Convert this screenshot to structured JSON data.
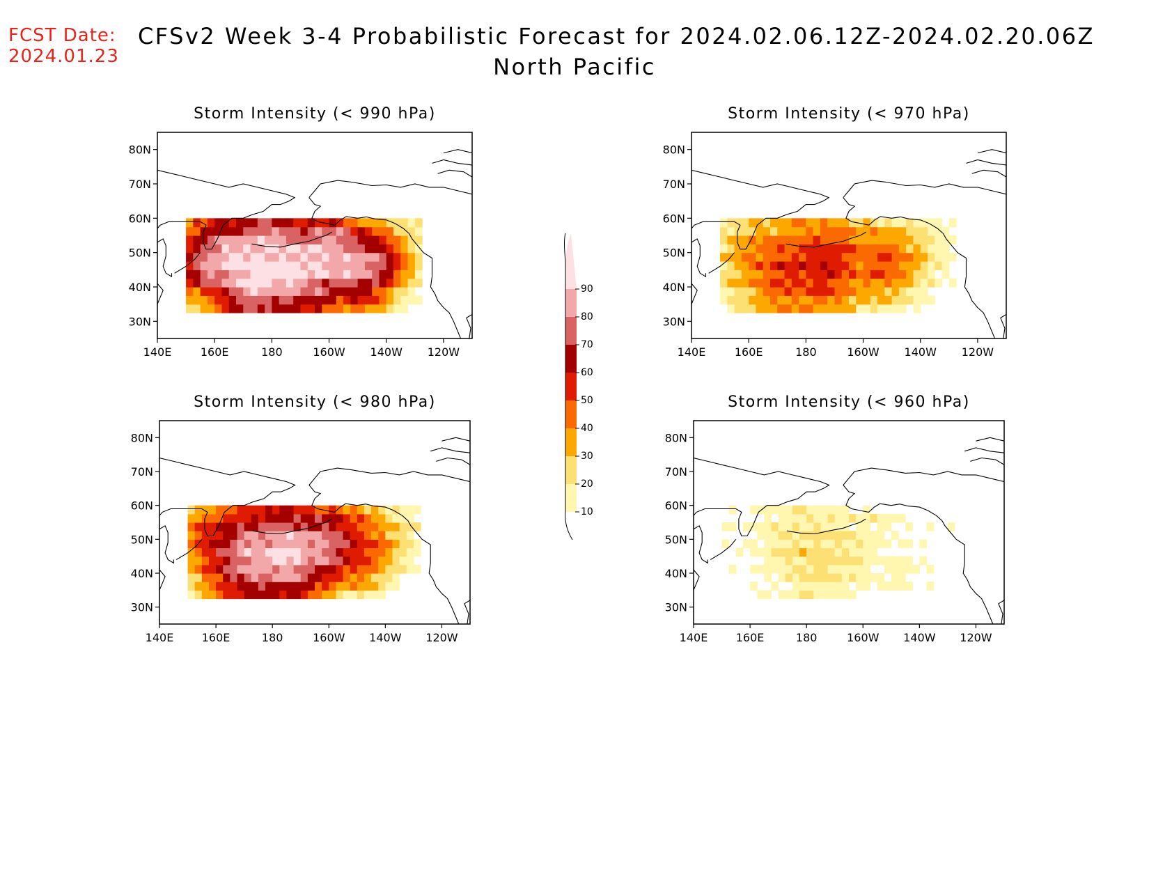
{
  "header": {
    "fcst_label": "FCST Date:",
    "fcst_date": "2024.01.23",
    "title_line1": "CFSv2 Week 3-4 Probabilistic Forecast for 2024.02.06.12Z-2024.02.20.06Z",
    "title_line2": "North Pacific"
  },
  "axes": {
    "x_ticks": [
      "140E",
      "160E",
      "180",
      "160W",
      "140W",
      "120W"
    ],
    "y_ticks": [
      "80N",
      "70N",
      "60N",
      "50N",
      "40N",
      "30N"
    ]
  },
  "legend": {
    "levels": [
      10,
      20,
      30,
      40,
      50,
      60,
      70,
      80,
      90
    ],
    "colors": [
      "#fff7b0",
      "#fde074",
      "#fca800",
      "#fb6a00",
      "#e01c00",
      "#a50000",
      "#d96363",
      "#f2a8a8",
      "#fce0e3"
    ]
  },
  "panels": [
    {
      "id": "990",
      "title": "Storm Intensity (< 990 hPa)"
    },
    {
      "id": "980",
      "title": "Storm Intensity (< 980 hPa)"
    },
    {
      "id": "970",
      "title": "Storm Intensity (< 970 hPa)"
    },
    {
      "id": "960",
      "title": "Storm Intensity (< 960 hPa)"
    }
  ]
}
